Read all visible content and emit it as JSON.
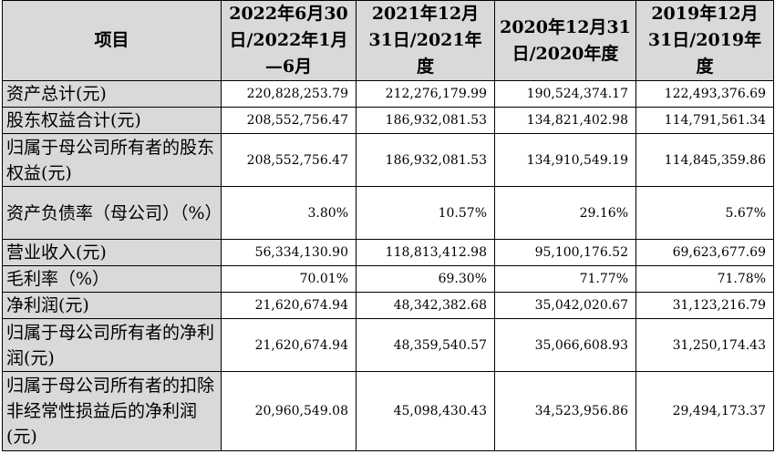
{
  "table": {
    "headers": [
      "项目",
      "2022年6月30日/2022年1月—6月",
      "2021年12月31日/2021年度",
      "2020年12月31日/2020年度",
      "2019年12月31日/2019年度"
    ],
    "rows": [
      {
        "label": "资产总计(元)",
        "values": [
          "220,828,253.79",
          "212,276,179.99",
          "190,524,374.17",
          "122,493,376.69"
        ]
      },
      {
        "label": "股东权益合计(元)",
        "values": [
          "208,552,756.47",
          "186,932,081.53",
          "134,821,402.98",
          "114,791,561.34"
        ]
      },
      {
        "label": "归属于母公司所有者的股东权益(元)",
        "values": [
          "208,552,756.47",
          "186,932,081.53",
          "134,910,549.19",
          "114,845,359.86"
        ]
      },
      {
        "label": "资产负债率（母公司）（%）",
        "values": [
          "3.80%",
          "10.57%",
          "29.16%",
          "5.67%"
        ]
      },
      {
        "label": "营业收入(元)",
        "values": [
          "56,334,130.90",
          "118,813,412.98",
          "95,100,176.52",
          "69,623,677.69"
        ]
      },
      {
        "label": "毛利率（%）",
        "values": [
          "70.01%",
          "69.30%",
          "71.77%",
          "71.78%"
        ]
      },
      {
        "label": "净利润(元)",
        "values": [
          "21,620,674.94",
          "48,342,382.68",
          "35,042,020.67",
          "31,123,216.79"
        ]
      },
      {
        "label": "归属于母公司所有者的净利润(元)",
        "values": [
          "21,620,674.94",
          "48,359,540.57",
          "35,066,608.93",
          "31,250,174.43"
        ]
      },
      {
        "label": "归属于母公司所有者的扣除非经常性损益后的净利润(元)",
        "values": [
          "20,960,549.08",
          "45,098,430.43",
          "34,523,956.86",
          "29,494,173.37"
        ]
      }
    ]
  }
}
